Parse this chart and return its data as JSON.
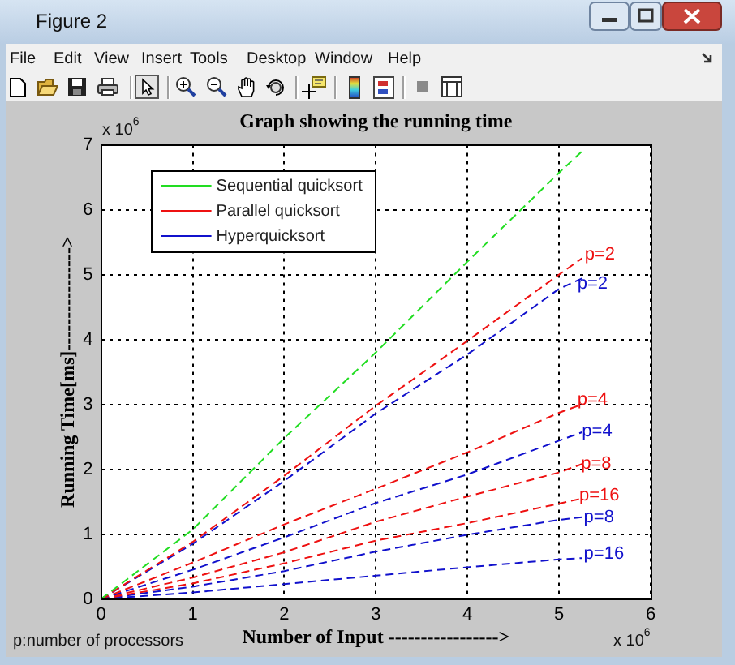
{
  "chart_data": {
    "type": "line",
    "title": "Graph showing the running time",
    "xlabel": "Number of Input ----------------->",
    "ylabel": "Running Time[ms]---------------->",
    "x": [
      0,
      1,
      2,
      3,
      4,
      5,
      5.25
    ],
    "series": [
      {
        "name": "Sequential quicksort",
        "color": "#22dd22",
        "values": [
          0,
          1.07,
          2.48,
          3.8,
          5.2,
          6.57,
          6.9
        ]
      },
      {
        "name": "Parallel quicksort",
        "color": "#ee1111",
        "values": [
          0,
          0.88,
          1.9,
          2.98,
          3.98,
          5.0,
          5.25
        ]
      },
      {
        "name": "Hyperquicksort",
        "color": "#1111cc",
        "values": [
          0,
          0.85,
          1.82,
          2.86,
          3.77,
          4.78,
          4.94
        ]
      },
      {
        "color": "#ee1111",
        "values": [
          0,
          0.56,
          1.15,
          1.7,
          2.26,
          2.87,
          3.0
        ]
      },
      {
        "color": "#1111cc",
        "values": [
          0,
          0.45,
          0.95,
          1.48,
          1.92,
          2.44,
          2.57
        ]
      },
      {
        "color": "#ee1111",
        "values": [
          0,
          0.33,
          0.72,
          1.19,
          1.58,
          1.95,
          2.08
        ]
      },
      {
        "color": "#ee1111",
        "values": [
          0,
          0.24,
          0.55,
          0.9,
          1.17,
          1.47,
          1.55
        ]
      },
      {
        "color": "#1111cc",
        "values": [
          0,
          0.19,
          0.43,
          0.73,
          0.99,
          1.22,
          1.26
        ]
      },
      {
        "color": "#1111cc",
        "values": [
          0,
          0.1,
          0.23,
          0.36,
          0.49,
          0.61,
          0.63
        ]
      }
    ],
    "xlim": [
      0,
      6
    ],
    "xticks": [
      0,
      1,
      2,
      3,
      4,
      5,
      6
    ],
    "ylim": [
      0,
      7
    ],
    "yticks": [
      0,
      1,
      2,
      3,
      4,
      5,
      6,
      7
    ],
    "grid": true,
    "legend": "top left",
    "marker": "none",
    "line_style": "dashed",
    "annotations": [
      "Figure 2",
      "File",
      "Edit",
      "View",
      "Insert",
      "Tools",
      "Desktop",
      "Window",
      "Help",
      "x 10$^{6}$",
      "x 10$^{6}$",
      "p:number of processors",
      {
        "text": "p=2",
        "x": 5.28,
        "y": 5.31
      },
      {
        "text": "p=2",
        "x": 5.2,
        "y": 4.86
      },
      {
        "text": "p=4",
        "x": 5.2,
        "y": 3.07
      },
      {
        "text": "p=4",
        "x": 5.25,
        "y": 2.58
      },
      {
        "text": "p=8",
        "x": 5.24,
        "y": 2.08
      },
      {
        "text": "p=16",
        "x": 5.22,
        "y": 1.6
      },
      {
        "text": "p=8",
        "x": 5.27,
        "y": 1.26
      },
      {
        "text": "p=16",
        "x": 5.27,
        "y": 0.7
      }
    ]
  }
}
